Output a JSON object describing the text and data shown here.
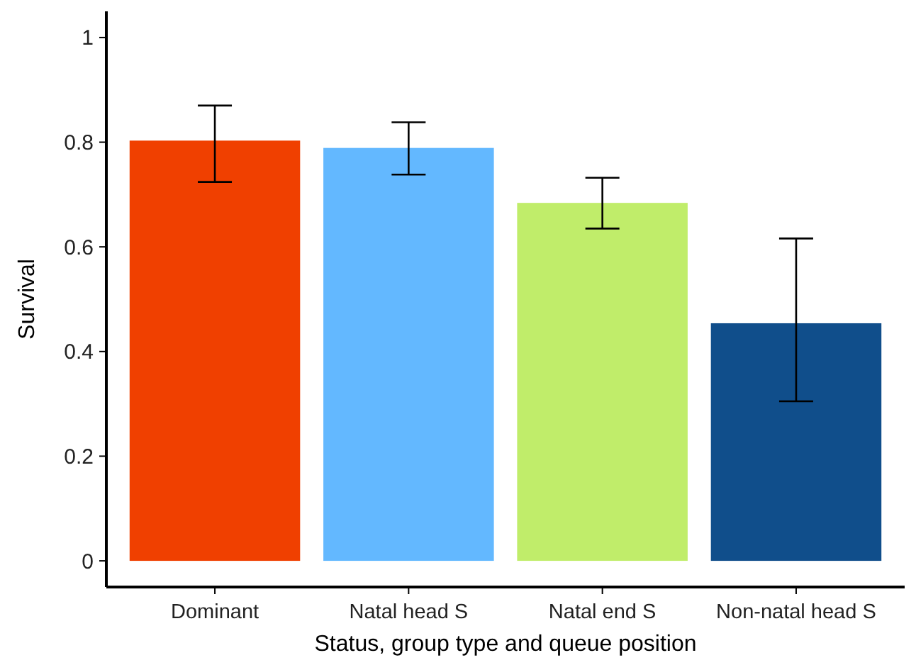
{
  "chart_data": {
    "type": "bar",
    "xlabel": "Status, group type and queue position",
    "ylabel": "Survival",
    "categories": [
      "Dominant",
      "Natal head S",
      "Natal end S",
      "Non-natal head S"
    ],
    "values": [
      0.803,
      0.789,
      0.684,
      0.454
    ],
    "colors": [
      "#f04000",
      "#63b8ff",
      "#c0ed6a",
      "#104e8b"
    ],
    "errors": [
      [
        0.724,
        0.87
      ],
      [
        0.738,
        0.838
      ],
      [
        0.635,
        0.732
      ],
      [
        0.305,
        0.616
      ]
    ],
    "ylim": [
      -0.05,
      1.05
    ],
    "yticks": [
      0,
      0.2,
      0.4,
      0.6,
      0.8,
      1
    ],
    "grid": false
  }
}
